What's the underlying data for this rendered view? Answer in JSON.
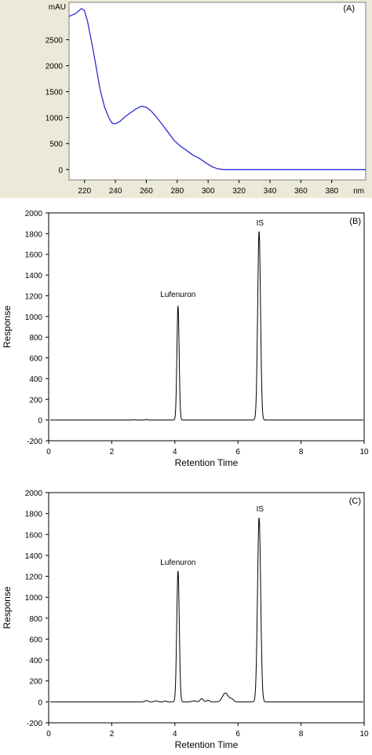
{
  "chart_data": [
    {
      "panel_label": "(A)",
      "type": "line",
      "ylabel_unit": "mAU",
      "xlabel_unit": "nm",
      "xlim": [
        210,
        402
      ],
      "ylim": [
        -200,
        3220
      ],
      "yticks": [
        0,
        500,
        1000,
        1500,
        2000,
        2500
      ],
      "xticks": [
        220,
        240,
        260,
        280,
        300,
        320,
        340,
        360,
        380
      ],
      "grid": false,
      "series": [
        {
          "color": "#2b2bd6",
          "points": [
            [
              210,
              2950
            ],
            [
              214,
              3000
            ],
            [
              218,
              3100
            ],
            [
              220,
              3060
            ],
            [
              222,
              2850
            ],
            [
              225,
              2400
            ],
            [
              228,
              1900
            ],
            [
              230,
              1550
            ],
            [
              233,
              1200
            ],
            [
              236,
              980
            ],
            [
              238,
              890
            ],
            [
              240,
              880
            ],
            [
              243,
              930
            ],
            [
              246,
              1010
            ],
            [
              250,
              1100
            ],
            [
              254,
              1180
            ],
            [
              257,
              1220
            ],
            [
              260,
              1200
            ],
            [
              263,
              1130
            ],
            [
              266,
              1030
            ],
            [
              270,
              880
            ],
            [
              274,
              720
            ],
            [
              278,
              560
            ],
            [
              282,
              450
            ],
            [
              286,
              370
            ],
            [
              290,
              280
            ],
            [
              294,
              220
            ],
            [
              297,
              160
            ],
            [
              300,
              100
            ],
            [
              303,
              50
            ],
            [
              306,
              15
            ],
            [
              310,
              0
            ],
            [
              330,
              0
            ],
            [
              360,
              0
            ],
            [
              402,
              0
            ]
          ]
        }
      ]
    },
    {
      "panel_label": "(B)",
      "type": "line",
      "xlabel": "Retention Time",
      "ylabel": "Response",
      "xlim": [
        0,
        10
      ],
      "ylim": [
        -200,
        2000
      ],
      "yticks": [
        -200,
        0,
        200,
        400,
        600,
        800,
        1000,
        1200,
        1400,
        1600,
        1800,
        2000
      ],
      "xticks": [
        0,
        2,
        4,
        6,
        8,
        10
      ],
      "grid": false,
      "annotations": [
        {
          "text": "Lufenuron",
          "x": 4.1,
          "y": 1190
        },
        {
          "text": "IS",
          "x": 6.7,
          "y": 1880
        }
      ],
      "peaks": [
        {
          "center": 4.1,
          "height": 1100,
          "width": 0.035
        },
        {
          "center": 6.67,
          "height": 1820,
          "width": 0.045
        }
      ],
      "baseline_bumps": [
        {
          "center": 2.7,
          "height": 4,
          "width": 0.03
        },
        {
          "center": 3.1,
          "height": 6,
          "width": 0.03
        }
      ],
      "series": [
        {
          "color": "#000000"
        }
      ]
    },
    {
      "panel_label": "(C)",
      "type": "line",
      "xlabel": "Retention Time",
      "ylabel": "Response",
      "xlim": [
        0,
        10
      ],
      "ylim": [
        -200,
        2000
      ],
      "yticks": [
        -200,
        0,
        200,
        400,
        600,
        800,
        1000,
        1200,
        1400,
        1600,
        1800,
        2000
      ],
      "xticks": [
        0,
        2,
        4,
        6,
        8,
        10
      ],
      "grid": false,
      "annotations": [
        {
          "text": "Lufenuron",
          "x": 4.1,
          "y": 1310
        },
        {
          "text": "IS",
          "x": 6.7,
          "y": 1820
        }
      ],
      "peaks": [
        {
          "center": 4.1,
          "height": 1250,
          "width": 0.04
        },
        {
          "center": 6.67,
          "height": 1760,
          "width": 0.05
        }
      ],
      "baseline_bumps": [
        {
          "center": 3.1,
          "height": 12,
          "width": 0.05
        },
        {
          "center": 3.4,
          "height": 10,
          "width": 0.05
        },
        {
          "center": 3.7,
          "height": 8,
          "width": 0.04
        },
        {
          "center": 4.6,
          "height": 10,
          "width": 0.06
        },
        {
          "center": 4.85,
          "height": 30,
          "width": 0.05
        },
        {
          "center": 5.05,
          "height": 15,
          "width": 0.05
        },
        {
          "center": 5.6,
          "height": 85,
          "width": 0.09
        },
        {
          "center": 5.8,
          "height": 25,
          "width": 0.06
        }
      ],
      "series": [
        {
          "color": "#000000"
        }
      ]
    }
  ]
}
